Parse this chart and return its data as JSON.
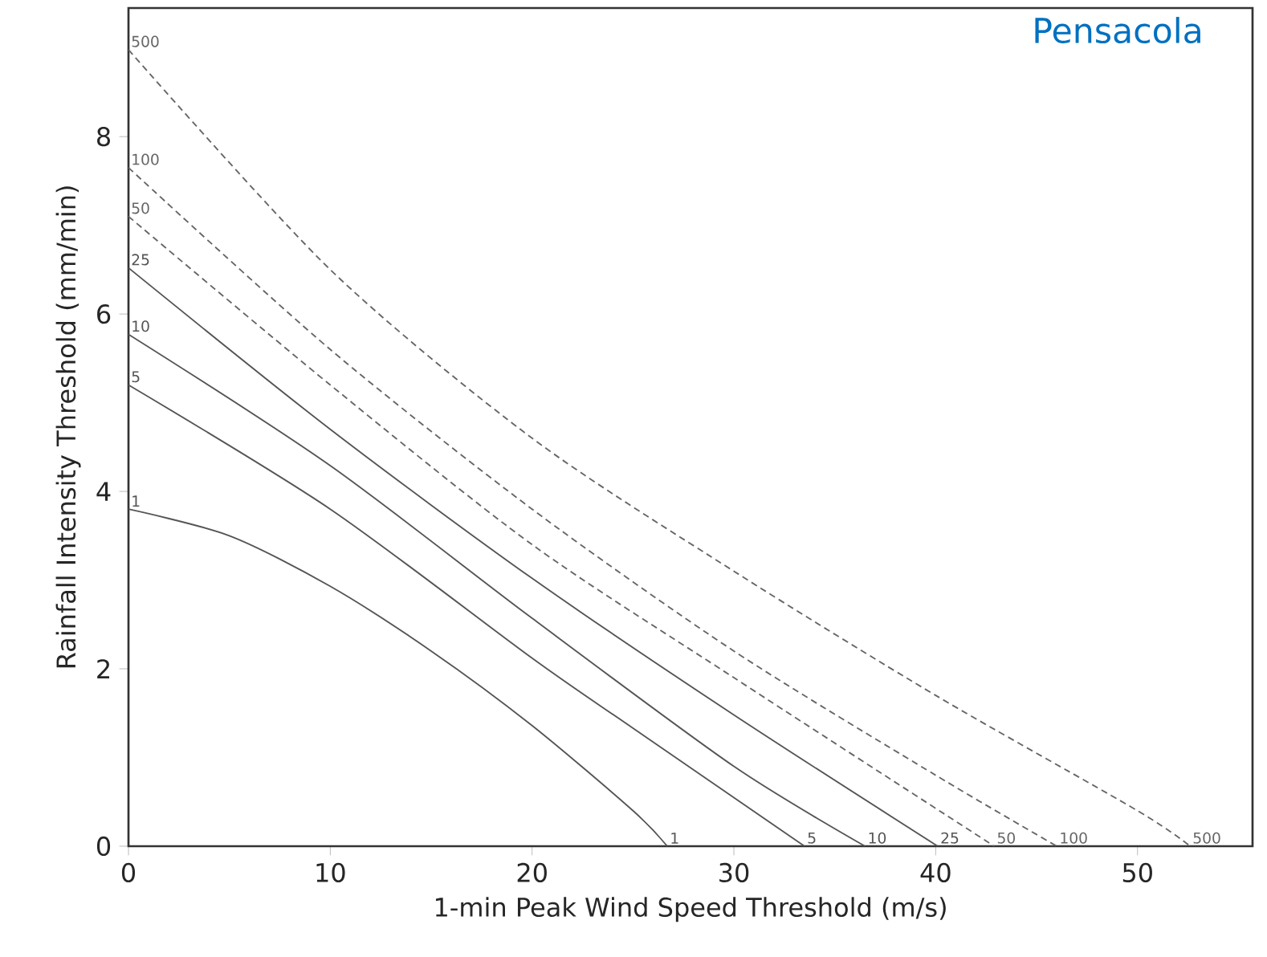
{
  "chart_data": {
    "type": "line",
    "title": "Pensacola",
    "xlabel": "1-min Peak Wind Speed Threshold (m/s)",
    "ylabel": "Rainfall Intensity Threshold (mm/min)",
    "xlim": [
      0,
      55.7
    ],
    "ylim": [
      0,
      9.45
    ],
    "xticks": [
      0,
      10,
      20,
      30,
      40,
      50
    ],
    "yticks": [
      0,
      2,
      4,
      6,
      8
    ],
    "grid": false,
    "series": [
      {
        "name": "1",
        "color": "#555555",
        "line_style": "solid",
        "x": [
          0,
          5,
          10,
          15,
          20,
          25,
          26.7
        ],
        "values": [
          3.8,
          3.5,
          2.93,
          2.2,
          1.36,
          0.4,
          0
        ]
      },
      {
        "name": "5",
        "color": "#555555",
        "line_style": "solid",
        "x": [
          0,
          10,
          20,
          25,
          33.5
        ],
        "values": [
          5.2,
          3.8,
          2.12,
          1.33,
          0
        ]
      },
      {
        "name": "10",
        "color": "#555555",
        "line_style": "solid",
        "x": [
          0,
          10,
          20,
          30,
          36.5
        ],
        "values": [
          5.77,
          4.29,
          2.57,
          0.9,
          0
        ]
      },
      {
        "name": "25",
        "color": "#555555",
        "line_style": "solid",
        "x": [
          0,
          10,
          20,
          30,
          40.1
        ],
        "values": [
          6.52,
          4.7,
          3.02,
          1.48,
          0
        ]
      },
      {
        "name": "50",
        "color": "#666666",
        "line_style": "dashed",
        "x": [
          0,
          10,
          20,
          30,
          42.9
        ],
        "values": [
          7.1,
          5.2,
          3.4,
          1.9,
          0
        ]
      },
      {
        "name": "100",
        "color": "#666666",
        "line_style": "dashed",
        "x": [
          0,
          10,
          20,
          30,
          40,
          46
        ],
        "values": [
          7.65,
          5.6,
          3.8,
          2.2,
          0.8,
          0
        ]
      },
      {
        "name": "500",
        "color": "#666666",
        "line_style": "dashed",
        "x": [
          0,
          10,
          20,
          30,
          40,
          50,
          52.6
        ],
        "values": [
          8.98,
          6.5,
          4.6,
          3.1,
          1.7,
          0.4,
          0
        ]
      }
    ]
  }
}
